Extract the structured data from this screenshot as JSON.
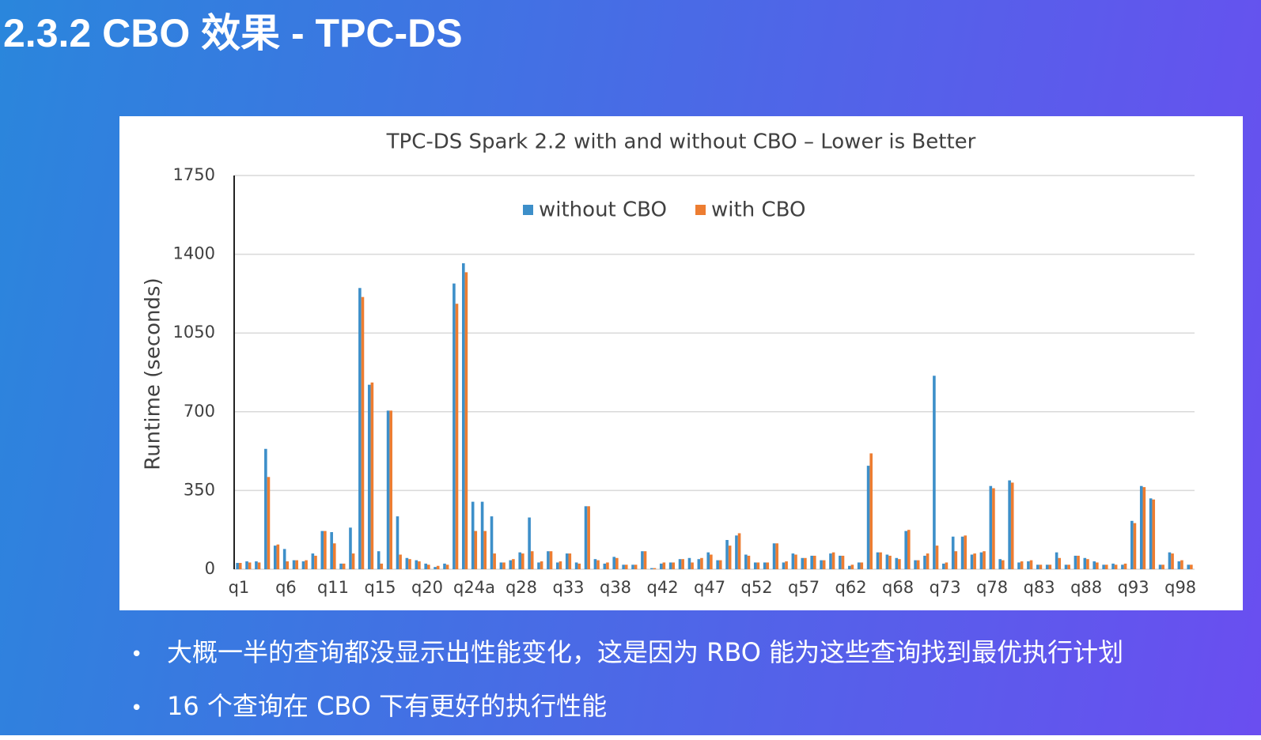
{
  "header": {
    "title": "2.3.2 CBO 效果 - TPC-DS"
  },
  "chart_data": {
    "type": "bar",
    "title": "TPC-DS Spark 2.2 with and without CBO – Lower is Better",
    "y_label": "Runtime (seconds)",
    "categories": [
      "q1",
      null,
      null,
      null,
      null,
      "q6",
      null,
      null,
      null,
      null,
      "q11",
      null,
      null,
      null,
      null,
      "q15",
      null,
      null,
      null,
      null,
      "q20",
      null,
      null,
      null,
      null,
      "q24a",
      null,
      null,
      null,
      null,
      "q28",
      null,
      null,
      null,
      null,
      "q33",
      null,
      null,
      null,
      null,
      "q38",
      null,
      null,
      null,
      null,
      "q42",
      null,
      null,
      null,
      null,
      "q47",
      null,
      null,
      null,
      null,
      "q52",
      null,
      null,
      null,
      null,
      "q57",
      null,
      null,
      null,
      null,
      "q62",
      null,
      null,
      null,
      null,
      "q68",
      null,
      null,
      null,
      null,
      "q73",
      null,
      null,
      null,
      null,
      "q78",
      null,
      null,
      null,
      null,
      "q83",
      null,
      null,
      null,
      null,
      "q88",
      null,
      null,
      null,
      null,
      "q93",
      null,
      null,
      null,
      null,
      "q98",
      null
    ],
    "series": [
      {
        "name": "without CBO",
        "color": "#3d8fc9",
        "values": [
          28,
          35,
          35,
          535,
          105,
          90,
          40,
          35,
          70,
          170,
          165,
          25,
          185,
          1250,
          820,
          80,
          705,
          235,
          50,
          40,
          25,
          10,
          25,
          1270,
          1360,
          300,
          300,
          235,
          30,
          40,
          75,
          230,
          30,
          80,
          30,
          70,
          30,
          280,
          45,
          25,
          55,
          20,
          20,
          80,
          5,
          25,
          30,
          45,
          50,
          45,
          75,
          40,
          130,
          150,
          65,
          30,
          30,
          115,
          30,
          70,
          50,
          60,
          40,
          70,
          60,
          15,
          30,
          460,
          75,
          65,
          50,
          170,
          40,
          60,
          860,
          25,
          145,
          145,
          65,
          75,
          370,
          45,
          395,
          30,
          35,
          20,
          20,
          75,
          20,
          60,
          50,
          35,
          20,
          25,
          20,
          215,
          370,
          315,
          20,
          75,
          35,
          20
        ]
      },
      {
        "name": "with CBO",
        "color": "#ed7d31",
        "values": [
          28,
          30,
          30,
          410,
          110,
          35,
          40,
          40,
          60,
          170,
          115,
          25,
          70,
          1210,
          830,
          25,
          705,
          65,
          45,
          35,
          20,
          15,
          20,
          1180,
          1320,
          170,
          170,
          70,
          30,
          45,
          70,
          80,
          35,
          80,
          35,
          70,
          25,
          280,
          40,
          30,
          50,
          20,
          20,
          80,
          5,
          30,
          30,
          45,
          30,
          50,
          65,
          40,
          105,
          160,
          60,
          30,
          30,
          115,
          35,
          65,
          50,
          60,
          40,
          75,
          60,
          20,
          30,
          515,
          75,
          60,
          45,
          175,
          40,
          70,
          105,
          30,
          80,
          150,
          70,
          80,
          360,
          40,
          385,
          35,
          40,
          20,
          20,
          50,
          20,
          60,
          45,
          30,
          20,
          20,
          25,
          205,
          365,
          310,
          20,
          70,
          40,
          20
        ]
      }
    ],
    "ylim": [
      0,
      1750
    ],
    "yticks": [
      0,
      350,
      700,
      1050,
      1400,
      1750
    ],
    "grid": true,
    "legend": "top"
  },
  "bullets": [
    "大概一半的查询都没显示出性能变化，这是因为 RBO 能为这些查询找到最优执行计划",
    "16 个查询在 CBO 下有更好的执行性能"
  ]
}
